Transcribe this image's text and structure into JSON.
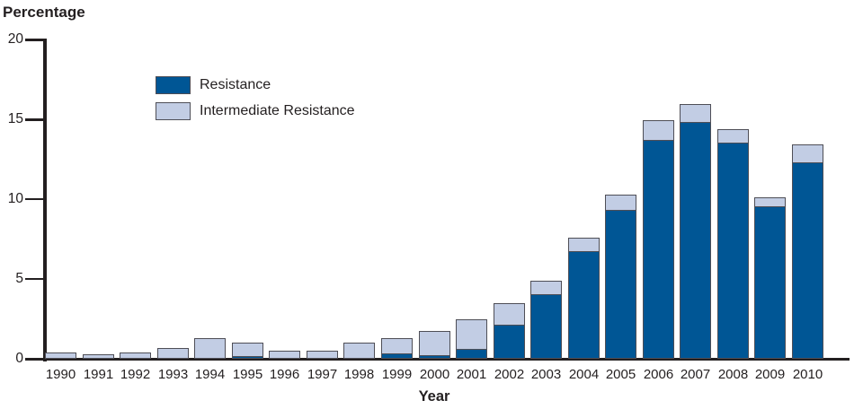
{
  "figure": {
    "y_axis_title": "Percentage",
    "x_axis_title": "Year"
  },
  "legend": {
    "items": [
      {
        "label": "Resistance",
        "color": "#005695"
      },
      {
        "label": "Intermediate Resistance",
        "color": "#c2cde4"
      }
    ]
  },
  "colors": {
    "resistance": "#005695",
    "intermediate_resistance": "#c2cde4",
    "bar_border": "#4e4e56",
    "axis": "#231f20",
    "text": "#231f20",
    "background": "#ffffff"
  },
  "chart_data": {
    "type": "bar",
    "stacked": true,
    "xlabel": "Year",
    "ylabel": "Percentage",
    "ylim": [
      0,
      20
    ],
    "yticks": [
      0,
      5,
      10,
      15,
      20
    ],
    "grid": false,
    "legend_position": "upper-left-inside-plot",
    "categories": [
      "1990",
      "1991",
      "1992",
      "1993",
      "1994",
      "1995",
      "1996",
      "1997",
      "1998",
      "1999",
      "2000",
      "2001",
      "2002",
      "2003",
      "2004",
      "2005",
      "2006",
      "2007",
      "2008",
      "2009",
      "2010"
    ],
    "series": [
      {
        "name": "Resistance",
        "color": "#005695",
        "values": [
          0,
          0,
          0,
          0,
          0,
          0.2,
          0,
          0.1,
          0,
          0.4,
          0.3,
          0.7,
          2.2,
          4.1,
          6.8,
          9.4,
          13.8,
          14.9,
          13.6,
          9.6,
          12.4
        ]
      },
      {
        "name": "Intermediate Resistance",
        "color": "#c2cde4",
        "values": [
          0.4,
          0.3,
          0.4,
          0.7,
          1.3,
          0.9,
          0.5,
          0.5,
          1.0,
          1.0,
          1.6,
          1.9,
          1.4,
          0.9,
          0.9,
          1.0,
          1.3,
          1.2,
          0.9,
          0.6,
          1.2
        ]
      }
    ]
  }
}
